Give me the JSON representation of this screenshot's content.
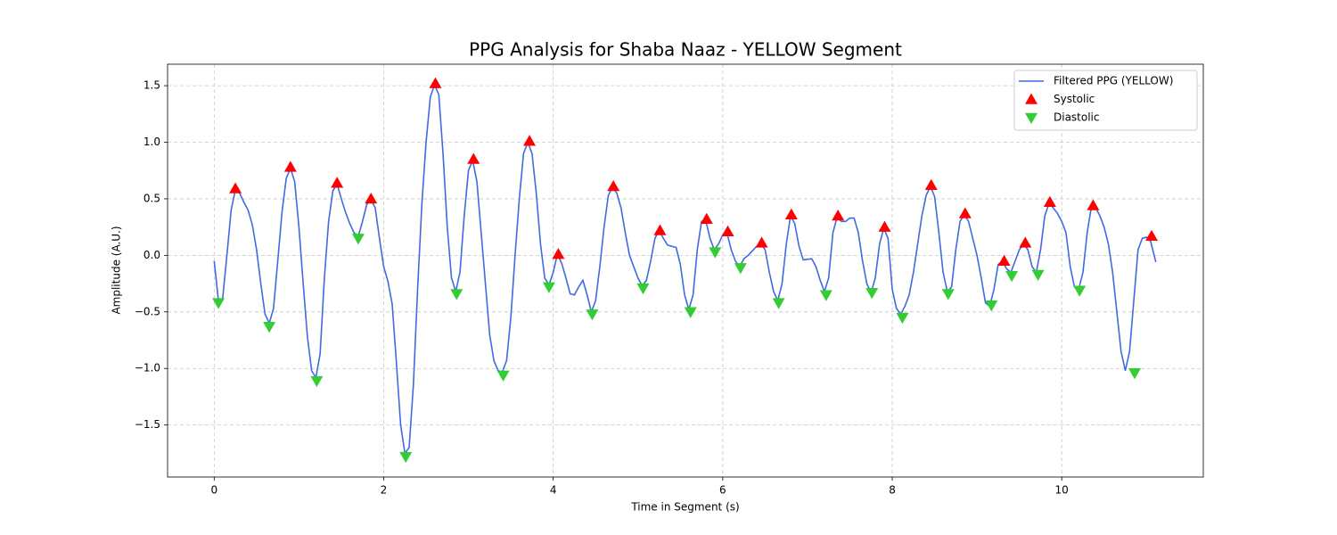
{
  "chart_data": {
    "type": "line",
    "title": "PPG Analysis for Shaba Naaz - YELLOW Segment",
    "xlabel": "Time in Segment (s)",
    "ylabel": "Amplitude (A.U.)",
    "xlim": [
      -0.55,
      11.67
    ],
    "ylim": [
      -1.96,
      1.69
    ],
    "xticks": [
      0,
      2,
      4,
      6,
      8,
      10
    ],
    "yticks": [
      {
        "value": -1.5,
        "label": "−1.5"
      },
      {
        "value": -1.0,
        "label": "−1.0"
      },
      {
        "value": -0.5,
        "label": "−0.5"
      },
      {
        "value": 0,
        "label": "0.0"
      },
      0.5,
      {
        "value": 1.0,
        "label": "1.0"
      },
      1.5
    ],
    "grid": true,
    "legend": "upper right",
    "series": [
      {
        "name": "Filtered PPG (YELLOW)",
        "color": "#4169e1",
        "x": [
          0,
          0.05,
          0.1,
          0.15,
          0.2,
          0.25,
          0.3,
          0.35,
          0.4,
          0.45,
          0.5,
          0.55,
          0.6,
          0.65,
          0.7,
          0.75,
          0.8,
          0.85,
          0.9,
          0.95,
          1.0,
          1.05,
          1.1,
          1.15,
          1.2,
          1.25,
          1.3,
          1.35,
          1.4,
          1.45,
          1.5,
          1.55,
          1.6,
          1.65,
          1.7,
          1.75,
          1.8,
          1.85,
          1.9,
          1.95,
          2.0,
          2.05,
          2.1,
          2.15,
          2.2,
          2.25,
          2.3,
          2.35,
          2.4,
          2.45,
          2.5,
          2.55,
          2.6,
          2.65,
          2.7,
          2.75,
          2.8,
          2.85,
          2.9,
          2.95,
          3.0,
          3.05,
          3.1,
          3.15,
          3.2,
          3.25,
          3.3,
          3.35,
          3.4,
          3.45,
          3.5,
          3.55,
          3.6,
          3.65,
          3.7,
          3.75,
          3.8,
          3.85,
          3.9,
          3.95,
          4.0,
          4.05,
          4.1,
          4.15,
          4.2,
          4.25,
          4.3,
          4.35,
          4.4,
          4.45,
          4.5,
          4.55,
          4.6,
          4.65,
          4.7,
          4.75,
          4.8,
          4.85,
          4.9,
          4.95,
          5.0,
          5.05,
          5.1,
          5.15,
          5.2,
          5.25,
          5.3,
          5.35,
          5.4,
          5.45,
          5.5,
          5.55,
          5.6,
          5.65,
          5.7,
          5.75,
          5.8,
          5.85,
          5.9,
          5.95,
          6.0,
          6.05,
          6.1,
          6.15,
          6.2,
          6.25,
          6.3,
          6.35,
          6.4,
          6.45,
          6.5,
          6.55,
          6.6,
          6.65,
          6.7,
          6.75,
          6.8,
          6.85,
          6.9,
          6.95,
          7.0,
          7.05,
          7.1,
          7.15,
          7.2,
          7.25,
          7.3,
          7.35,
          7.4,
          7.45,
          7.5,
          7.55,
          7.6,
          7.65,
          7.7,
          7.75,
          7.8,
          7.85,
          7.9,
          7.95,
          8.0,
          8.05,
          8.1,
          8.15,
          8.2,
          8.25,
          8.3,
          8.35,
          8.4,
          8.45,
          8.5,
          8.55,
          8.6,
          8.65,
          8.7,
          8.75,
          8.8,
          8.85,
          8.9,
          8.95,
          9.0,
          9.05,
          9.1,
          9.15,
          9.2,
          9.25,
          9.3,
          9.35,
          9.4,
          9.45,
          9.5,
          9.55,
          9.6,
          9.65,
          9.7,
          9.75,
          9.8,
          9.85,
          9.9,
          9.95,
          10.0,
          10.05,
          10.1,
          10.15,
          10.2,
          10.25,
          10.3,
          10.35,
          10.4,
          10.45,
          10.5,
          10.55,
          10.6,
          10.65,
          10.7,
          10.75,
          10.8,
          10.85,
          10.9,
          10.95,
          11.0,
          11.05,
          11.11
        ],
        "values": [
          -0.05,
          -0.4,
          -0.38,
          0.0,
          0.4,
          0.58,
          0.55,
          0.47,
          0.4,
          0.27,
          0.05,
          -0.25,
          -0.52,
          -0.6,
          -0.47,
          -0.05,
          0.38,
          0.68,
          0.77,
          0.65,
          0.25,
          -0.25,
          -0.72,
          -1.02,
          -1.08,
          -0.87,
          -0.2,
          0.3,
          0.57,
          0.63,
          0.5,
          0.38,
          0.28,
          0.2,
          0.17,
          0.3,
          0.45,
          0.49,
          0.42,
          0.15,
          -0.1,
          -0.23,
          -0.43,
          -0.95,
          -1.5,
          -1.75,
          -1.7,
          -1.15,
          -0.3,
          0.45,
          1.0,
          1.4,
          1.51,
          1.42,
          0.9,
          0.25,
          -0.2,
          -0.32,
          -0.15,
          0.35,
          0.75,
          0.84,
          0.65,
          0.2,
          -0.25,
          -0.7,
          -0.93,
          -1.02,
          -1.03,
          -0.93,
          -0.55,
          0.0,
          0.5,
          0.9,
          1.0,
          0.9,
          0.55,
          0.1,
          -0.2,
          -0.26,
          -0.15,
          0.01,
          -0.07,
          -0.2,
          -0.34,
          -0.35,
          -0.28,
          -0.22,
          -0.35,
          -0.5,
          -0.4,
          -0.1,
          0.25,
          0.53,
          0.6,
          0.55,
          0.42,
          0.2,
          0.0,
          -0.1,
          -0.2,
          -0.27,
          -0.22,
          -0.05,
          0.15,
          0.22,
          0.15,
          0.09,
          0.08,
          0.07,
          -0.08,
          -0.35,
          -0.48,
          -0.35,
          0.05,
          0.3,
          0.31,
          0.15,
          0.05,
          0.1,
          0.18,
          0.2,
          0.05,
          -0.05,
          -0.1,
          -0.03,
          0.0,
          0.04,
          0.08,
          0.1,
          0.05,
          -0.15,
          -0.32,
          -0.4,
          -0.25,
          0.1,
          0.35,
          0.28,
          0.08,
          -0.04,
          -0.035,
          -0.03,
          -0.1,
          -0.22,
          -0.32,
          -0.2,
          0.2,
          0.34,
          0.3,
          0.3,
          0.33,
          0.33,
          0.2,
          -0.05,
          -0.25,
          -0.33,
          -0.2,
          0.1,
          0.24,
          0.15,
          -0.3,
          -0.47,
          -0.52,
          -0.45,
          -0.35,
          -0.15,
          0.1,
          0.35,
          0.53,
          0.61,
          0.52,
          0.2,
          -0.15,
          -0.32,
          -0.28,
          0.05,
          0.3,
          0.36,
          0.3,
          0.15,
          0.0,
          -0.2,
          -0.42,
          -0.45,
          -0.3,
          -0.08,
          -0.05,
          -0.12,
          -0.15,
          -0.05,
          0.05,
          0.1,
          0.05,
          -0.1,
          -0.15,
          0.05,
          0.35,
          0.46,
          0.42,
          0.37,
          0.3,
          0.2,
          -0.1,
          -0.28,
          -0.3,
          -0.15,
          0.2,
          0.43,
          0.42,
          0.35,
          0.25,
          0.1,
          -0.15,
          -0.5,
          -0.85,
          -1.02,
          -0.85,
          -0.4,
          0.05,
          0.15,
          0.16,
          0.12,
          -0.06
        ]
      },
      {
        "name": "Systolic",
        "color": "#ff0000",
        "marker": "triangle-up",
        "x": [
          0.25,
          0.9,
          1.45,
          1.85,
          2.61,
          3.06,
          3.72,
          4.06,
          4.71,
          5.26,
          5.81,
          6.06,
          6.46,
          6.81,
          7.36,
          7.91,
          8.46,
          8.86,
          9.32,
          9.57,
          9.86,
          10.37,
          11.06
        ],
        "values": [
          0.59,
          0.78,
          0.64,
          0.5,
          1.52,
          0.85,
          1.01,
          0.01,
          0.61,
          0.22,
          0.32,
          0.21,
          0.11,
          0.36,
          0.35,
          0.25,
          0.62,
          0.37,
          -0.05,
          0.11,
          0.47,
          0.44,
          0.17
        ]
      },
      {
        "name": "Diastolic",
        "color": "#32cd32",
        "marker": "triangle-down",
        "x": [
          0.05,
          0.65,
          1.21,
          1.7,
          2.26,
          2.86,
          3.41,
          3.95,
          4.46,
          5.06,
          5.62,
          5.91,
          6.21,
          6.66,
          7.22,
          7.76,
          8.12,
          8.66,
          9.17,
          9.41,
          9.72,
          10.21,
          10.86
        ],
        "values": [
          -0.42,
          -0.63,
          -1.11,
          0.15,
          -1.78,
          -0.34,
          -1.06,
          -0.28,
          -0.52,
          -0.29,
          -0.5,
          0.03,
          -0.11,
          -0.42,
          -0.35,
          -0.33,
          -0.55,
          -0.34,
          -0.44,
          -0.18,
          -0.17,
          -0.31,
          -1.04
        ]
      }
    ]
  }
}
